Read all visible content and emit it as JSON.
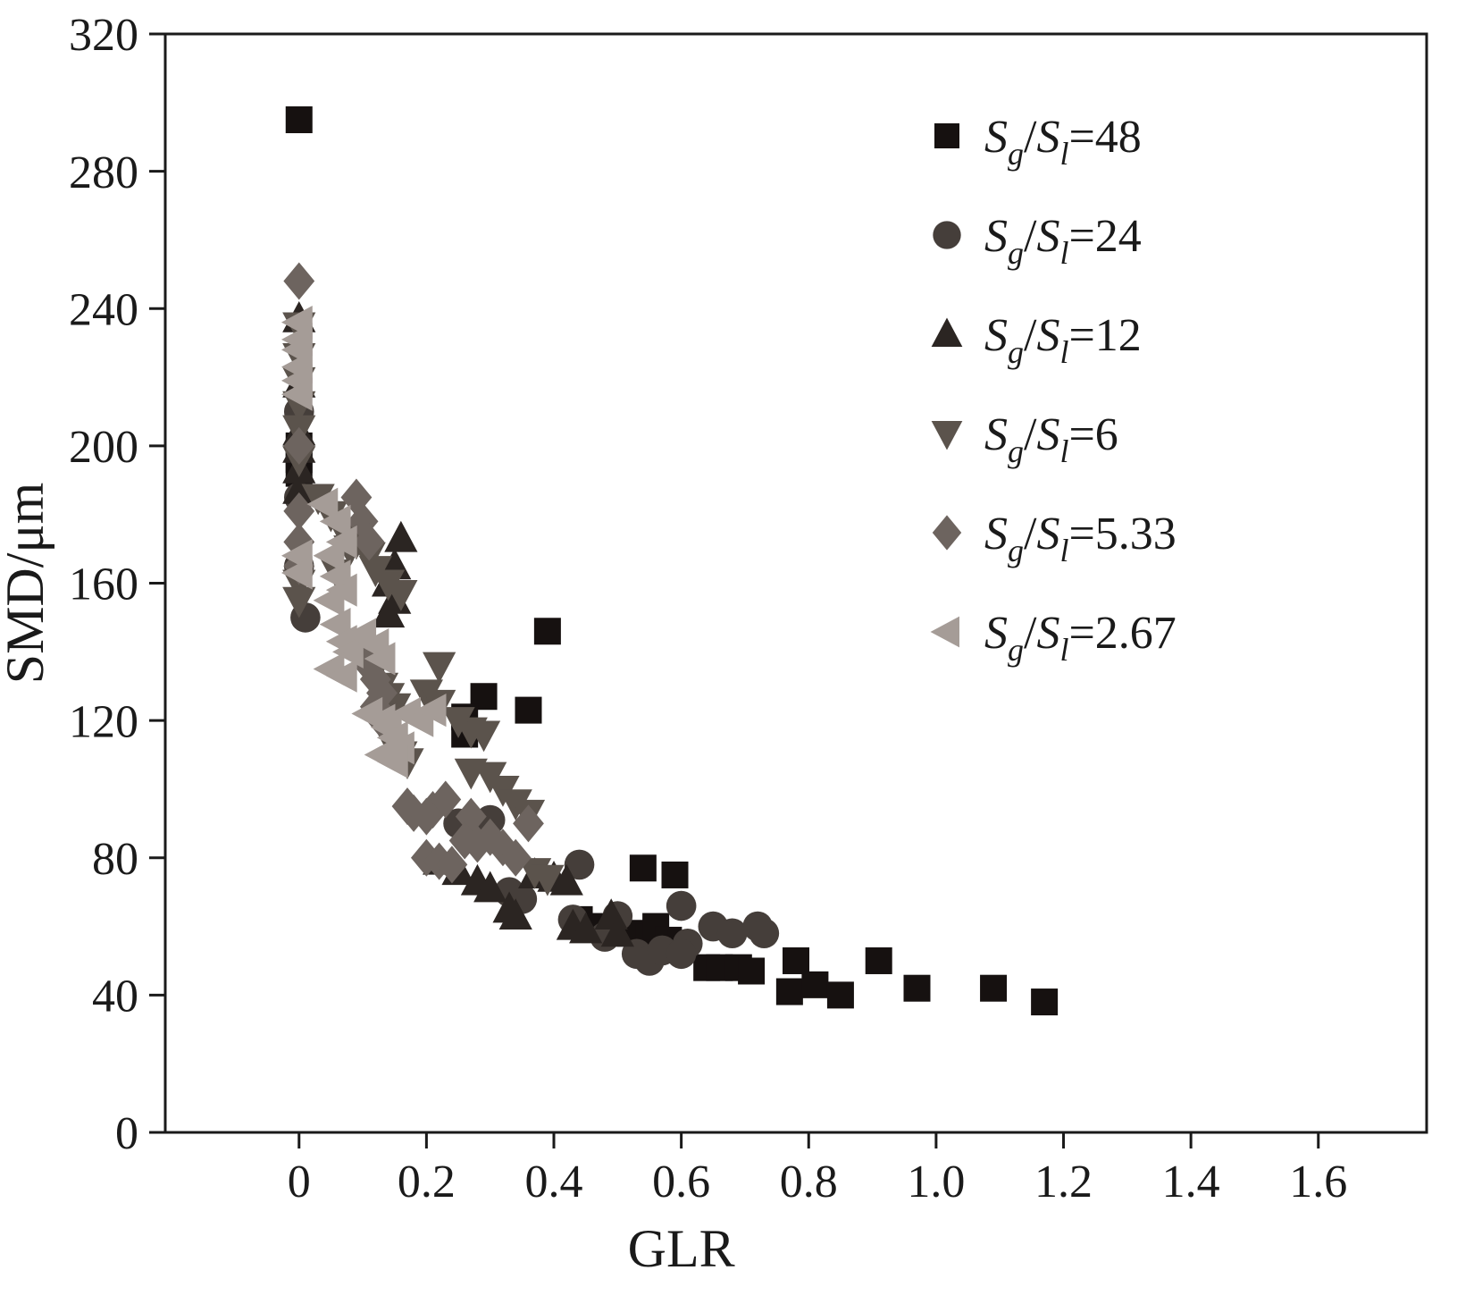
{
  "chart_data": {
    "type": "scatter",
    "title": "",
    "xlabel": "GLR",
    "ylabel": "SMD/μm",
    "xlim": [
      -0.21,
      1.77
    ],
    "ylim": [
      0,
      320
    ],
    "xticks": [
      0,
      0.2,
      0.4,
      0.6,
      0.8,
      1.0,
      1.2,
      1.4,
      1.6
    ],
    "xtick_labels": [
      "0",
      "0.2",
      "0.4",
      "0.6",
      "0.8",
      "1.0",
      "1.2",
      "1.4",
      "1.6"
    ],
    "yticks": [
      0,
      40,
      80,
      120,
      160,
      200,
      240,
      280,
      320
    ],
    "ytick_labels": [
      "0",
      "40",
      "80",
      "120",
      "160",
      "200",
      "240",
      "280",
      "320"
    ],
    "grid": false,
    "legend_position": "upper-right",
    "legend_label_parts": {
      "sym": "S",
      "sub_g": "g",
      "slash": "/",
      "sub_l": "l",
      "eq": "="
    },
    "series": [
      {
        "name": "Sg/Sl=48",
        "legend_value": "48",
        "marker": "square",
        "color": "#161110",
        "points": [
          [
            0,
            295
          ],
          [
            0,
            200
          ],
          [
            0,
            196
          ],
          [
            0,
            192
          ],
          [
            0.39,
            146
          ],
          [
            0.29,
            127
          ],
          [
            0.36,
            123
          ],
          [
            0.26,
            121
          ],
          [
            0.26,
            116
          ],
          [
            0.54,
            77
          ],
          [
            0.59,
            75
          ],
          [
            0.44,
            62
          ],
          [
            0.46,
            60
          ],
          [
            0.49,
            59
          ],
          [
            0.52,
            58
          ],
          [
            0.55,
            57
          ],
          [
            0.56,
            60
          ],
          [
            0.58,
            56
          ],
          [
            0.6,
            55
          ],
          [
            0.64,
            48
          ],
          [
            0.66,
            48
          ],
          [
            0.69,
            48
          ],
          [
            0.71,
            47
          ],
          [
            0.78,
            50
          ],
          [
            0.77,
            41
          ],
          [
            0.81,
            43
          ],
          [
            0.85,
            40
          ],
          [
            0.91,
            50
          ],
          [
            0.97,
            42
          ],
          [
            1.09,
            42
          ],
          [
            1.17,
            38
          ]
        ]
      },
      {
        "name": "Sg/Sl=24",
        "legend_value": "24",
        "marker": "circle",
        "color": "#453e3a",
        "points": [
          [
            0,
            210
          ],
          [
            0,
            185
          ],
          [
            0,
            165
          ],
          [
            0.01,
            150
          ],
          [
            0.25,
            90
          ],
          [
            0.28,
            88
          ],
          [
            0.3,
            91
          ],
          [
            0.33,
            70
          ],
          [
            0.35,
            68
          ],
          [
            0.44,
            78
          ],
          [
            0.43,
            62
          ],
          [
            0.48,
            57
          ],
          [
            0.5,
            63
          ],
          [
            0.53,
            52
          ],
          [
            0.55,
            50
          ],
          [
            0.57,
            53
          ],
          [
            0.6,
            66
          ],
          [
            0.61,
            55
          ],
          [
            0.6,
            52
          ],
          [
            0.65,
            60
          ],
          [
            0.68,
            58
          ],
          [
            0.72,
            60
          ],
          [
            0.73,
            58
          ]
        ]
      },
      {
        "name": "Sg/Sl=12",
        "legend_value": "12",
        "marker": "triangle-up",
        "color": "#2b2522",
        "points": [
          [
            0,
            237
          ],
          [
            0,
            218
          ],
          [
            0,
            204
          ],
          [
            0,
            199
          ],
          [
            0,
            193
          ],
          [
            0,
            187
          ],
          [
            0.16,
            173
          ],
          [
            0.15,
            165
          ],
          [
            0.14,
            160
          ],
          [
            0.15,
            155
          ],
          [
            0.14,
            151
          ],
          [
            0.22,
            79
          ],
          [
            0.25,
            76
          ],
          [
            0.28,
            73
          ],
          [
            0.3,
            71
          ],
          [
            0.33,
            65
          ],
          [
            0.34,
            63
          ],
          [
            0.37,
            75
          ],
          [
            0.4,
            74
          ],
          [
            0.42,
            73
          ],
          [
            0.43,
            60
          ],
          [
            0.45,
            59
          ],
          [
            0.49,
            63
          ],
          [
            0.5,
            58
          ]
        ]
      },
      {
        "name": "Sg/Sl=6",
        "legend_value": "6",
        "marker": "triangle-down",
        "color": "#5b534c",
        "points": [
          [
            0,
            235
          ],
          [
            0,
            226
          ],
          [
            0,
            219
          ],
          [
            0,
            212
          ],
          [
            0,
            205
          ],
          [
            0,
            196
          ],
          [
            0,
            160
          ],
          [
            0,
            155
          ],
          [
            0.03,
            185
          ],
          [
            0.05,
            180
          ],
          [
            0.07,
            175
          ],
          [
            0.08,
            170
          ],
          [
            0.06,
            163
          ],
          [
            0.09,
            172
          ],
          [
            0.11,
            168
          ],
          [
            0.12,
            164
          ],
          [
            0.14,
            160
          ],
          [
            0.16,
            157
          ],
          [
            0.12,
            135
          ],
          [
            0.13,
            130
          ],
          [
            0.14,
            127
          ],
          [
            0.15,
            124
          ],
          [
            0.13,
            121
          ],
          [
            0.14,
            118
          ],
          [
            0.15,
            112
          ],
          [
            0.16,
            110
          ],
          [
            0.17,
            108
          ],
          [
            0.22,
            136
          ],
          [
            0.2,
            128
          ],
          [
            0.22,
            125
          ],
          [
            0.25,
            120
          ],
          [
            0.27,
            117
          ],
          [
            0.29,
            116
          ],
          [
            0.27,
            105
          ],
          [
            0.3,
            104
          ],
          [
            0.32,
            100
          ],
          [
            0.34,
            96
          ],
          [
            0.36,
            93
          ],
          [
            0.37,
            76
          ],
          [
            0.39,
            74
          ]
        ]
      },
      {
        "name": "Sg/Sl=5.33",
        "legend_value": "5.33",
        "marker": "diamond",
        "color": "#6d645f",
        "points": [
          [
            0,
            248
          ],
          [
            0,
            200
          ],
          [
            0,
            181
          ],
          [
            0,
            172
          ],
          [
            0,
            165
          ],
          [
            0.09,
            185
          ],
          [
            0.1,
            178
          ],
          [
            0.11,
            172
          ],
          [
            0.1,
            140
          ],
          [
            0.11,
            136
          ],
          [
            0.12,
            132
          ],
          [
            0.13,
            128
          ],
          [
            0.12,
            124
          ],
          [
            0.13,
            120
          ],
          [
            0.17,
            95
          ],
          [
            0.18,
            93
          ],
          [
            0.2,
            92
          ],
          [
            0.21,
            94
          ],
          [
            0.23,
            97
          ],
          [
            0.27,
            92
          ],
          [
            0.2,
            80
          ],
          [
            0.22,
            79
          ],
          [
            0.24,
            78
          ],
          [
            0.26,
            85
          ],
          [
            0.28,
            84
          ],
          [
            0.3,
            86
          ],
          [
            0.32,
            83
          ],
          [
            0.34,
            80
          ],
          [
            0.36,
            90
          ]
        ]
      },
      {
        "name": "Sg/Sl=2.67",
        "legend_value": "2.67",
        "marker": "triangle-left",
        "color": "#a59c97",
        "points": [
          [
            0,
            236
          ],
          [
            0,
            231
          ],
          [
            0,
            228
          ],
          [
            0,
            223
          ],
          [
            0,
            219
          ],
          [
            0,
            215
          ],
          [
            0,
            168
          ],
          [
            0,
            163
          ],
          [
            0.04,
            183
          ],
          [
            0.06,
            178
          ],
          [
            0.07,
            172
          ],
          [
            0.05,
            168
          ],
          [
            0.06,
            162
          ],
          [
            0.07,
            158
          ],
          [
            0.05,
            155
          ],
          [
            0.06,
            148
          ],
          [
            0.07,
            143
          ],
          [
            0.08,
            140
          ],
          [
            0.05,
            135
          ],
          [
            0.07,
            133
          ],
          [
            0.1,
            145
          ],
          [
            0.12,
            142
          ],
          [
            0.13,
            138
          ],
          [
            0.11,
            122
          ],
          [
            0.13,
            120
          ],
          [
            0.14,
            118
          ],
          [
            0.15,
            115
          ],
          [
            0.16,
            112
          ],
          [
            0.13,
            110
          ],
          [
            0.15,
            108
          ],
          [
            0.17,
            122
          ],
          [
            0.19,
            120
          ],
          [
            0.21,
            123
          ]
        ]
      }
    ]
  }
}
